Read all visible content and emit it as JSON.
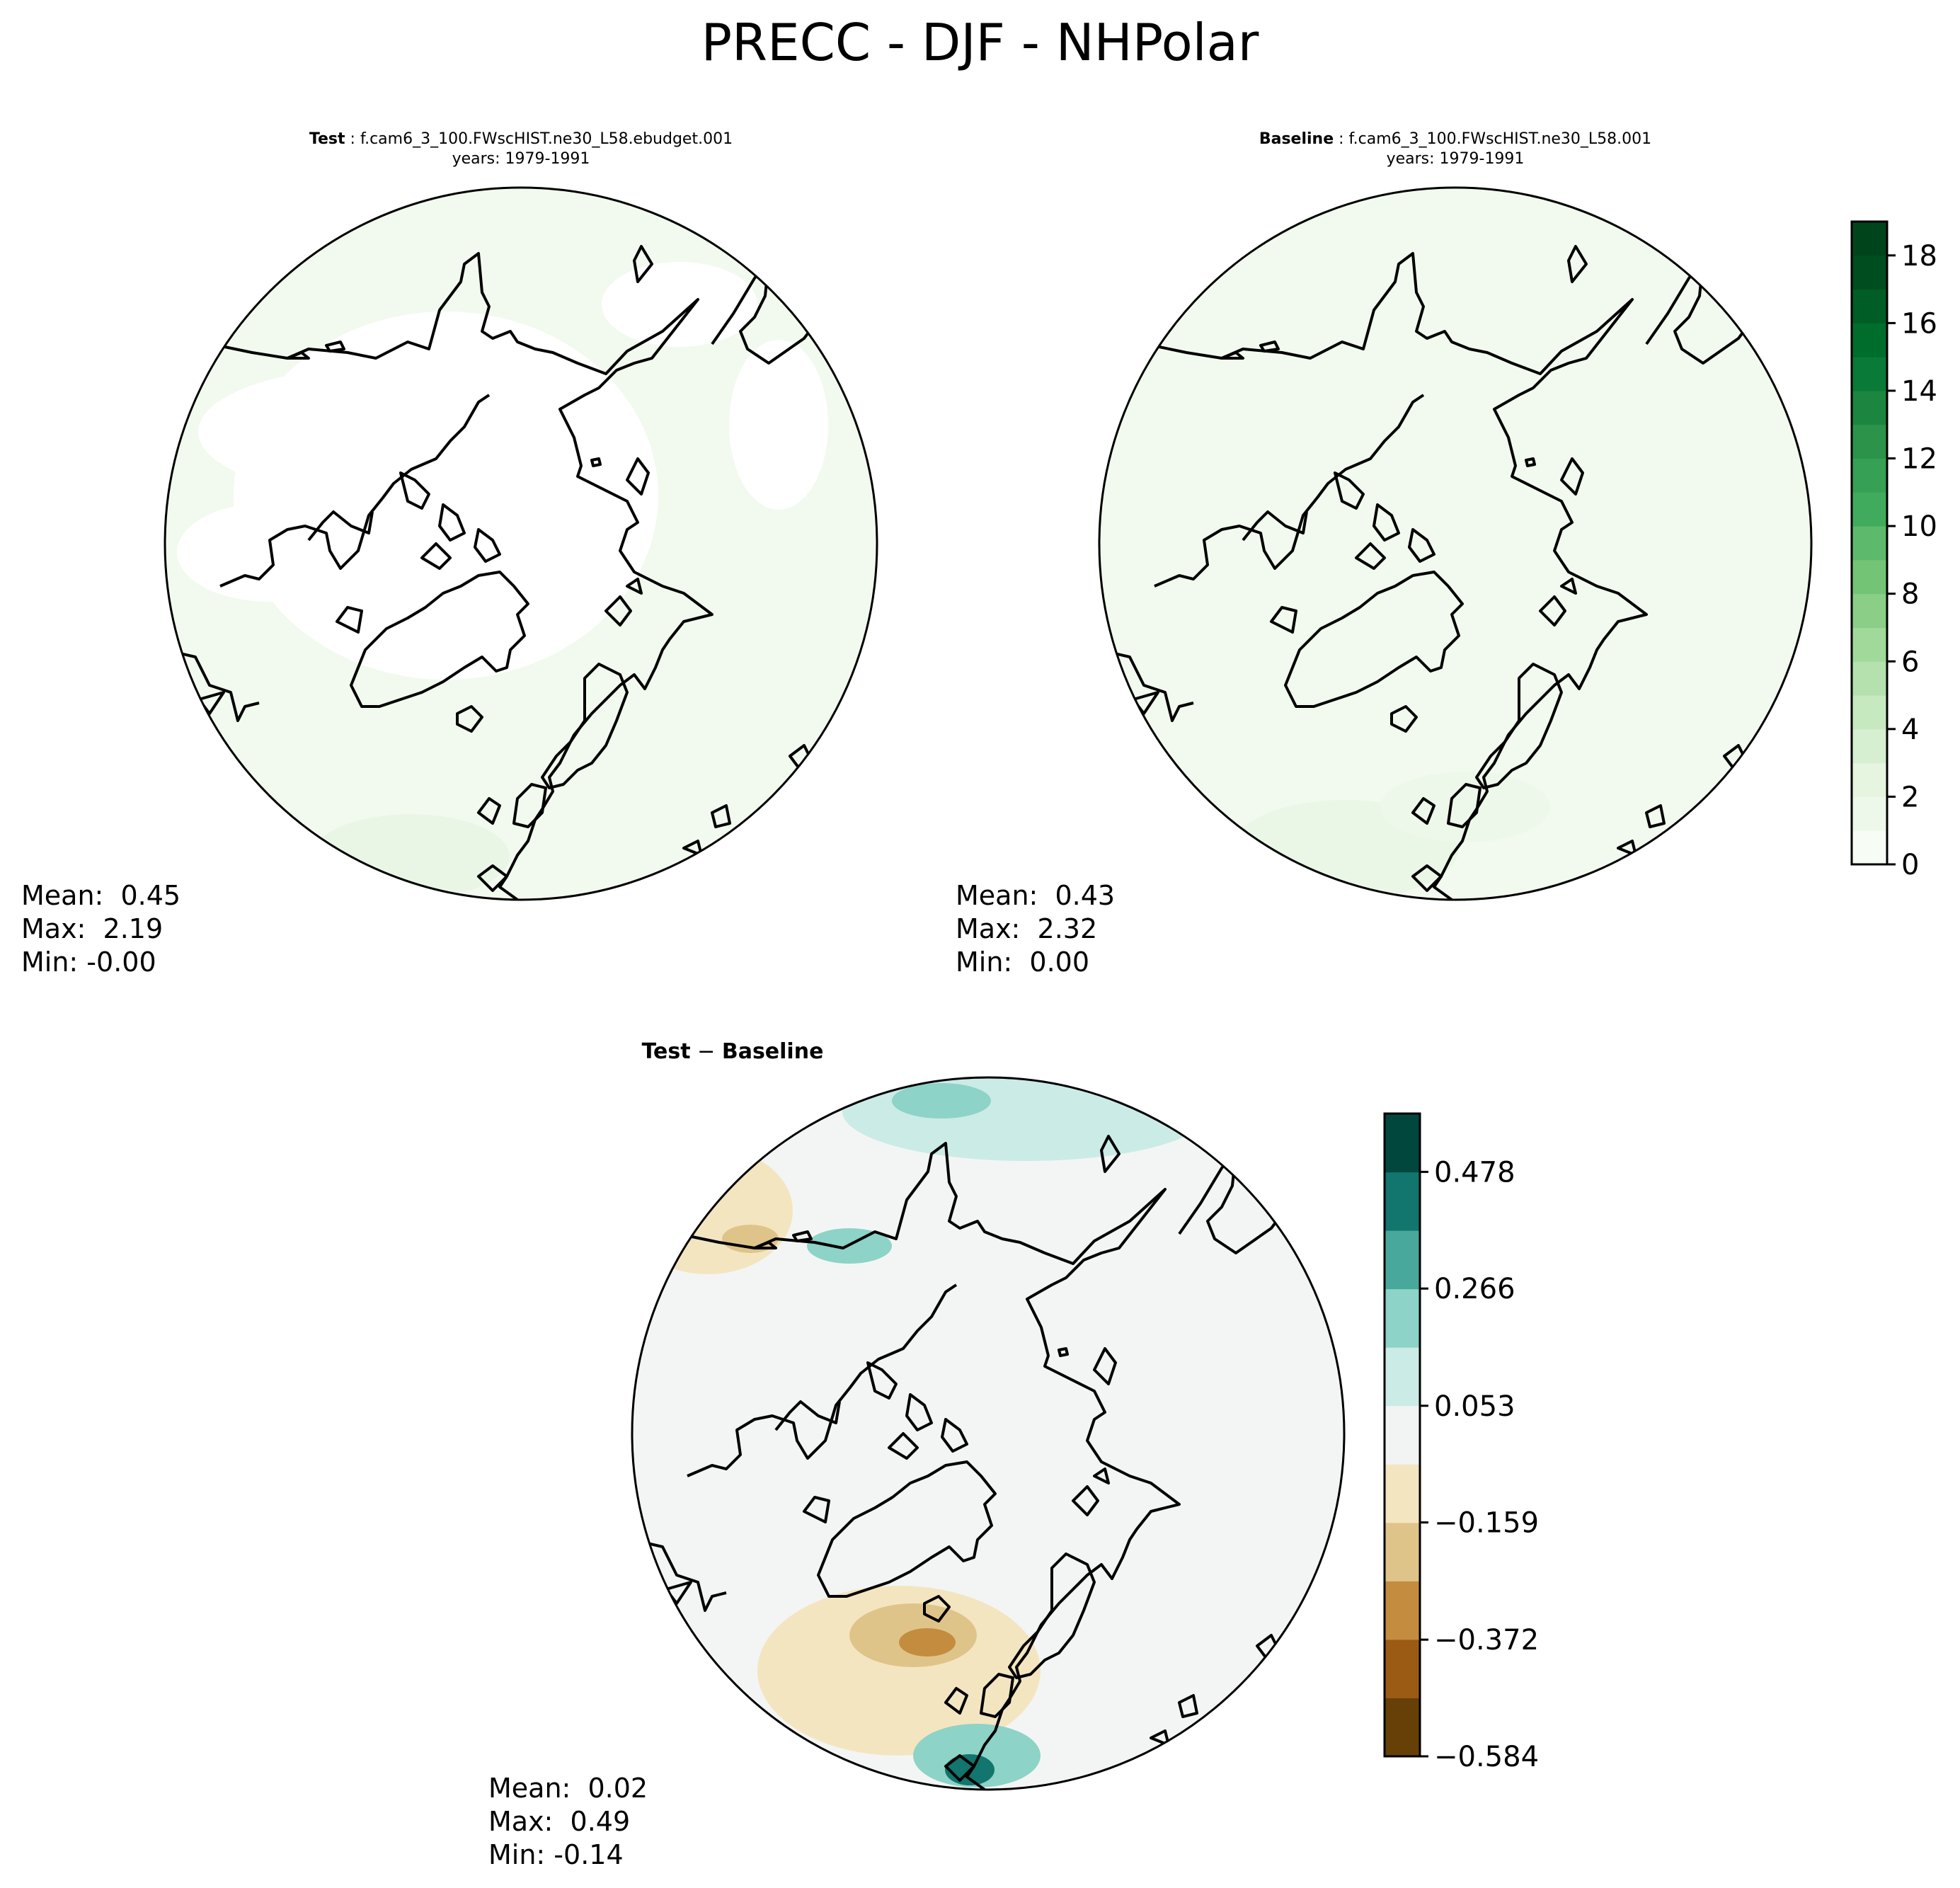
{
  "title": "PRECC - DJF - NHPolar",
  "panels": {
    "test": {
      "label": "Test",
      "case": "f.cam6_3_100.FWscHIST.ne30_L58.ebudget.001",
      "years": "years: 1979-1991",
      "stats": {
        "mean": "Mean:  0.45",
        "max": "Max:  2.19",
        "min": "Min: -0.00"
      }
    },
    "baseline": {
      "label": "Baseline",
      "case": "f.cam6_3_100.FWscHIST.ne30_L58.001",
      "years": "years: 1979-1991",
      "stats": {
        "mean": "Mean:  0.43",
        "max": "Max:  2.32",
        "min": "Min:  0.00"
      }
    },
    "diff": {
      "label_a": "Test",
      "label_sep": " − ",
      "label_b": "Baseline",
      "stats": {
        "mean": "Mean:  0.02",
        "max": "Max:  0.49",
        "min": "Min: -0.14"
      }
    }
  },
  "chart_data": [
    {
      "type": "heatmap",
      "projection": "north-polar-stereographic",
      "panel": "Test",
      "field": "PRECC",
      "season": "DJF",
      "summary": {
        "mean": 0.45,
        "max": 2.19,
        "min": -0.0
      },
      "colormap": "Greens"
    },
    {
      "type": "heatmap",
      "projection": "north-polar-stereographic",
      "panel": "Baseline",
      "field": "PRECC",
      "season": "DJF",
      "summary": {
        "mean": 0.43,
        "max": 2.32,
        "min": 0.0
      },
      "colormap": "Greens"
    },
    {
      "type": "heatmap",
      "projection": "north-polar-stereographic",
      "panel": "Test − Baseline",
      "summary": {
        "mean": 0.02,
        "max": 0.49,
        "min": -0.14
      },
      "colormap": "BrBG"
    }
  ],
  "colorbars": {
    "main": {
      "range": [
        0,
        19
      ],
      "ticks": [
        "0",
        "2",
        "4",
        "6",
        "8",
        "10",
        "12",
        "14",
        "16",
        "18"
      ],
      "tick_values": [
        0,
        2,
        4,
        6,
        8,
        10,
        12,
        14,
        16,
        18
      ],
      "colors": [
        "#f7fcf5",
        "#eef8ea",
        "#e5f5e0",
        "#d6efd0",
        "#c7e9c0",
        "#b4e1ad",
        "#a1d99b",
        "#8ace88",
        "#74c476",
        "#5db96b",
        "#41ab5d",
        "#36a055",
        "#2b944a",
        "#1c853f",
        "#097a37",
        "#006d2c",
        "#005d25",
        "#004d1f",
        "#00441b"
      ]
    },
    "diff": {
      "range": [
        -0.584,
        0.584
      ],
      "ticks": [
        "0.478",
        "0.266",
        "0.053",
        "−0.159",
        "−0.372",
        "−0.584"
      ],
      "tick_values": [
        0.478,
        0.266,
        0.053,
        -0.159,
        -0.372,
        -0.584
      ],
      "colors": [
        "#674008",
        "#9b5b15",
        "#c48c3f",
        "#dfc48a",
        "#f4e5c1",
        "#f2f4f3",
        "#cbebe6",
        "#8dd3c7",
        "#48a89c",
        "#12756e",
        "#01473d"
      ]
    }
  }
}
